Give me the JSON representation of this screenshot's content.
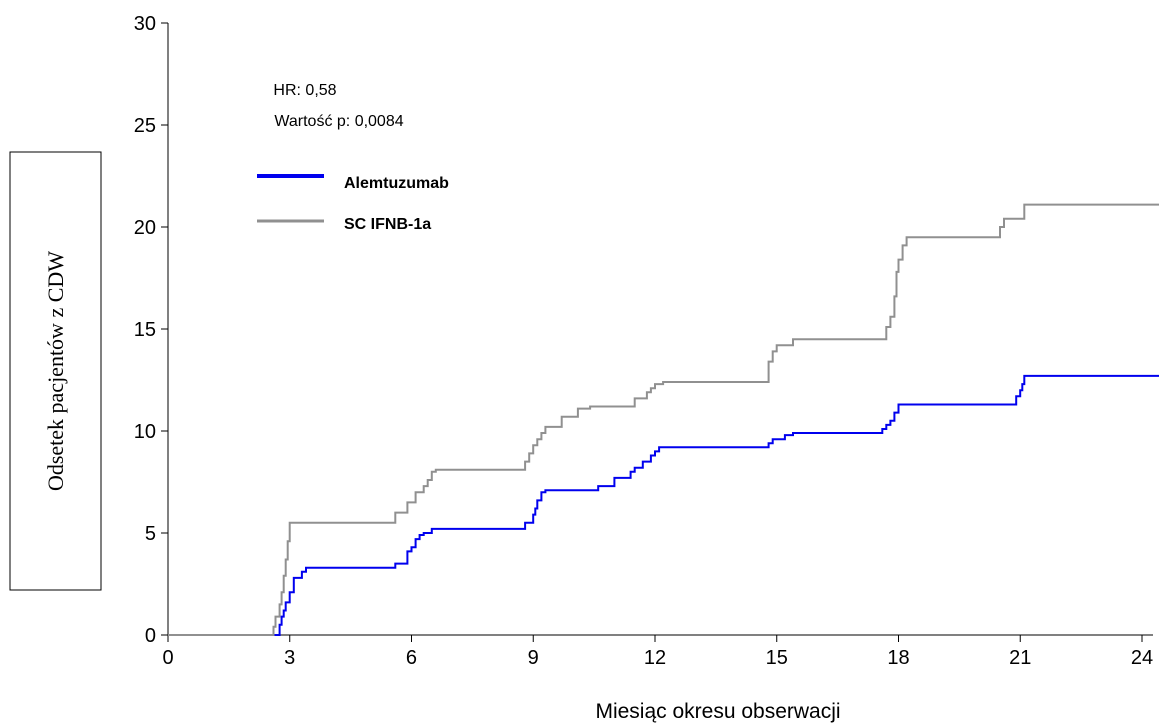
{
  "chart_data": {
    "type": "line",
    "xlabel": "Miesiąc okresu obserwacji",
    "ylabel": "Odsetek pacjentów z CDW",
    "xlim": [
      0,
      24.5
    ],
    "ylim": [
      0,
      30
    ],
    "x_ticks": [
      "0",
      "3",
      "6",
      "9",
      "12",
      "15",
      "18",
      "21",
      "24"
    ],
    "y_ticks": [
      "0",
      "5",
      "10",
      "15",
      "20",
      "25",
      "30"
    ],
    "annotations": {
      "hr": "HR: 0,58",
      "p_value": "Wartość p: 0,0084"
    },
    "legend_position": "top-left",
    "series": [
      {
        "name": "Alemtuzumab",
        "color": "#0000ee",
        "x": [
          0,
          2.75,
          2.8,
          2.85,
          2.9,
          3.0,
          3.1,
          3.3,
          3.4,
          5.6,
          5.9,
          6.0,
          6.1,
          6.2,
          6.3,
          6.5,
          8.8,
          9.0,
          9.05,
          9.1,
          9.2,
          9.3,
          10.6,
          11.0,
          11.4,
          11.5,
          11.7,
          11.9,
          12.0,
          12.1,
          14.8,
          14.9,
          15.2,
          15.4,
          17.6,
          17.7,
          17.8,
          17.9,
          18.0,
          20.9,
          21.0,
          21.05,
          21.1,
          24.5
        ],
        "y": [
          0,
          0.5,
          0.9,
          1.2,
          1.6,
          2.1,
          2.8,
          3.1,
          3.3,
          3.5,
          4.1,
          4.3,
          4.7,
          4.9,
          5.0,
          5.2,
          5.5,
          5.9,
          6.2,
          6.6,
          7.0,
          7.1,
          7.3,
          7.7,
          8.0,
          8.2,
          8.5,
          8.8,
          9.0,
          9.2,
          9.4,
          9.6,
          9.8,
          9.9,
          10.1,
          10.3,
          10.5,
          10.9,
          11.3,
          11.7,
          12.0,
          12.3,
          12.7,
          12.7
        ]
      },
      {
        "name": "SC IFNB-1a",
        "color": "#909090",
        "x": [
          0,
          2.6,
          2.65,
          2.75,
          2.8,
          2.85,
          2.9,
          2.95,
          3.0,
          5.6,
          5.9,
          6.1,
          6.3,
          6.4,
          6.5,
          6.6,
          8.8,
          8.9,
          9.0,
          9.1,
          9.2,
          9.3,
          9.7,
          10.1,
          10.4,
          11.5,
          11.8,
          11.9,
          12.0,
          12.2,
          14.8,
          14.9,
          15.0,
          15.4,
          17.7,
          17.8,
          17.9,
          17.95,
          18.0,
          18.1,
          18.2,
          20.5,
          20.6,
          21.1,
          24.5
        ],
        "y": [
          0,
          0.4,
          0.9,
          1.5,
          2.1,
          2.9,
          3.7,
          4.6,
          5.5,
          6.0,
          6.5,
          7.0,
          7.3,
          7.6,
          8.0,
          8.1,
          8.5,
          8.9,
          9.3,
          9.6,
          9.9,
          10.2,
          10.7,
          11.1,
          11.2,
          11.6,
          11.9,
          12.1,
          12.3,
          12.4,
          13.4,
          13.9,
          14.2,
          14.5,
          15.1,
          15.6,
          16.6,
          17.8,
          18.4,
          19.1,
          19.5,
          20.0,
          20.4,
          21.1,
          21.1
        ]
      }
    ]
  }
}
